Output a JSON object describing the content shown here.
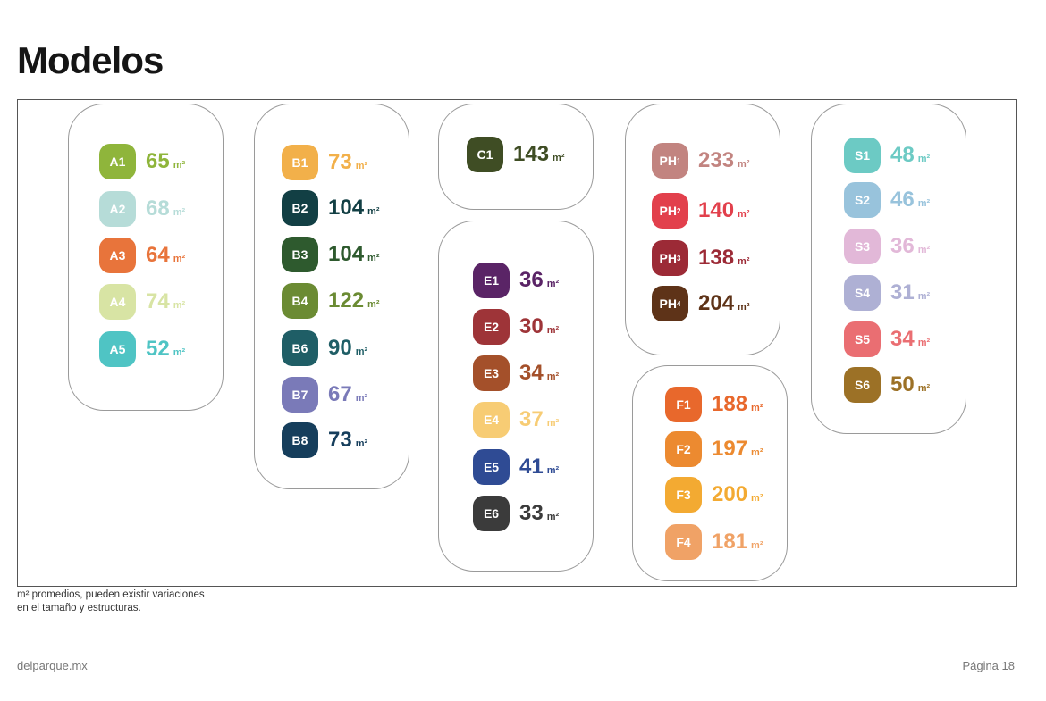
{
  "page": {
    "title": "Modelos",
    "note_line1": "m² promedios, pueden existir variaciones",
    "note_line2": "en el tamaño y estructuras.",
    "site": "delparque.mx",
    "page_label": "Página 18"
  },
  "unit": "m²",
  "groups": [
    {
      "name": "A",
      "models": [
        {
          "code": "A1",
          "area": "65",
          "color": "#8fb53b"
        },
        {
          "code": "A2",
          "area": "68",
          "color": "#b6dcd8"
        },
        {
          "code": "A3",
          "area": "64",
          "color": "#e8743b"
        },
        {
          "code": "A4",
          "area": "74",
          "color": "#d8e4a4"
        },
        {
          "code": "A5",
          "area": "52",
          "color": "#4fc4c4"
        }
      ]
    },
    {
      "name": "B",
      "models": [
        {
          "code": "B1",
          "area": "73",
          "color": "#f2b04a"
        },
        {
          "code": "B2",
          "area": "104",
          "color": "#123f44"
        },
        {
          "code": "B3",
          "area": "104",
          "color": "#2e5a2e"
        },
        {
          "code": "B4",
          "area": "122",
          "color": "#6b8b33"
        },
        {
          "code": "B6",
          "area": "90",
          "color": "#1f5e66"
        },
        {
          "code": "B7",
          "area": "67",
          "color": "#7a7ab8"
        },
        {
          "code": "B8",
          "area": "73",
          "color": "#163e5c"
        }
      ]
    },
    {
      "name": "C",
      "models": [
        {
          "code": "C1",
          "area": "143",
          "color": "#3f4d24"
        }
      ]
    },
    {
      "name": "E",
      "models": [
        {
          "code": "E1",
          "area": "36",
          "color": "#5a2466"
        },
        {
          "code": "E2",
          "area": "30",
          "color": "#9e3438"
        },
        {
          "code": "E3",
          "area": "34",
          "color": "#a4502a"
        },
        {
          "code": "E4",
          "area": "37",
          "color": "#f7cc74"
        },
        {
          "code": "E5",
          "area": "41",
          "color": "#2f4b94"
        },
        {
          "code": "E6",
          "area": "33",
          "color": "#3b3b3b"
        }
      ]
    },
    {
      "name": "PH",
      "models": [
        {
          "code": "PH",
          "sub": "1",
          "area": "233",
          "color": "#c28480"
        },
        {
          "code": "PH",
          "sub": "2",
          "area": "140",
          "color": "#e2404c"
        },
        {
          "code": "PH",
          "sub": "3",
          "area": "138",
          "color": "#9c2a36"
        },
        {
          "code": "PH",
          "sub": "4",
          "area": "204",
          "color": "#5e3318"
        }
      ]
    },
    {
      "name": "F",
      "models": [
        {
          "code": "F1",
          "area": "188",
          "color": "#e8682c"
        },
        {
          "code": "F2",
          "area": "197",
          "color": "#ec8a30"
        },
        {
          "code": "F3",
          "area": "200",
          "color": "#f3aa32"
        },
        {
          "code": "F4",
          "area": "181",
          "color": "#f0a266"
        }
      ]
    },
    {
      "name": "S",
      "models": [
        {
          "code": "S1",
          "area": "48",
          "color": "#6ccac4"
        },
        {
          "code": "S2",
          "area": "46",
          "color": "#98c3dc"
        },
        {
          "code": "S3",
          "area": "36",
          "color": "#e2b8d8"
        },
        {
          "code": "S4",
          "area": "31",
          "color": "#aeb0d4"
        },
        {
          "code": "S5",
          "area": "34",
          "color": "#ea6e72"
        },
        {
          "code": "S6",
          "area": "50",
          "color": "#9c7126"
        }
      ]
    }
  ]
}
